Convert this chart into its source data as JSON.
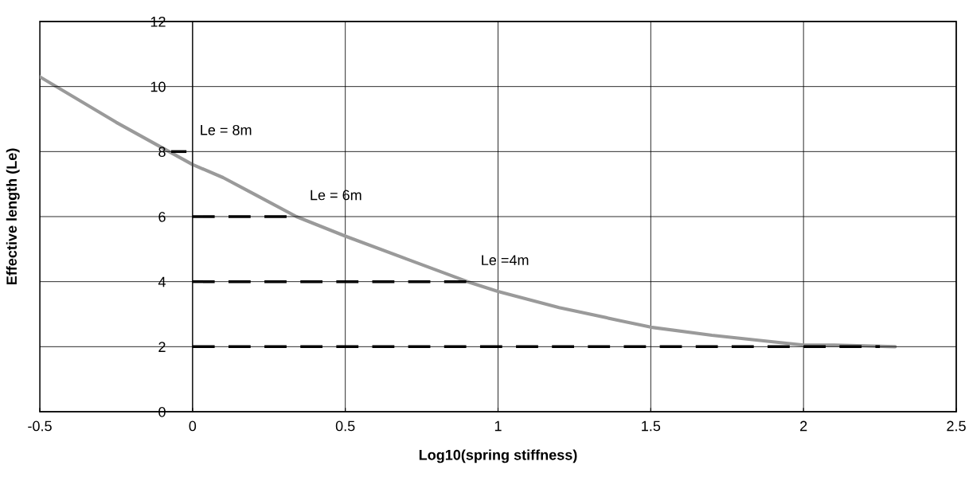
{
  "chart_data": {
    "type": "line",
    "xlabel": "Log10(spring stiffness)",
    "ylabel": "Effective length (Le)",
    "xlim": [
      -0.5,
      2.5
    ],
    "xticks": [
      -0.5,
      0,
      0.5,
      1,
      1.5,
      2,
      2.5
    ],
    "ylim": [
      0,
      12
    ],
    "yticks": [
      0,
      2,
      4,
      6,
      8,
      10,
      12
    ],
    "grid": true,
    "legend": false,
    "series": [
      {
        "color": "#9a9a9a",
        "line_style": "solid",
        "x": [
          -0.5,
          -0.25,
          0,
          0.1,
          0.2,
          0.34,
          0.5,
          0.7,
          0.9,
          1.0,
          1.2,
          1.4,
          1.5,
          1.7,
          1.9,
          2.0,
          2.1,
          2.3
        ],
        "values": [
          10.3,
          8.9,
          7.6,
          7.2,
          6.7,
          6.0,
          5.4,
          4.7,
          4.0,
          3.7,
          3.2,
          2.8,
          2.6,
          2.35,
          2.15,
          2.05,
          2.05,
          2.0
        ]
      },
      {
        "color": "#000000",
        "line_style": "dashed",
        "x": [
          -0.07,
          -0.02
        ],
        "values": [
          8,
          8
        ]
      },
      {
        "color": "#000000",
        "line_style": "dashed",
        "x": [
          0,
          0.34
        ],
        "values": [
          6,
          6
        ]
      },
      {
        "color": "#000000",
        "line_style": "dashed",
        "x": [
          0,
          0.9
        ],
        "values": [
          4,
          4
        ]
      },
      {
        "color": "#000000",
        "line_style": "dashed",
        "x": [
          0,
          2.25
        ],
        "values": [
          2,
          2
        ]
      }
    ],
    "annotations": [
      "Le = 8m",
      "Le = 6m",
      "Le =4m"
    ]
  }
}
